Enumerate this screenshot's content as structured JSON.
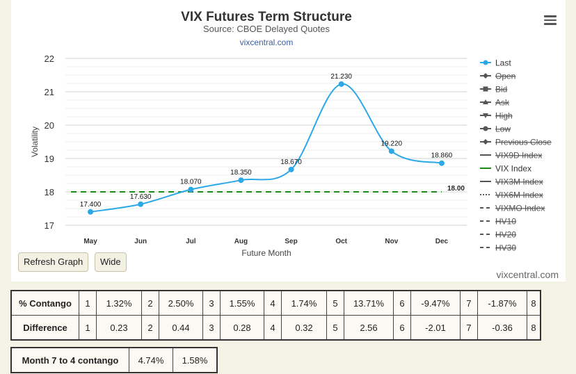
{
  "chart_data": {
    "type": "line",
    "title": "VIX Futures Term Structure",
    "subtitle": "Source: CBOE Delayed Quotes",
    "link": "vixcentral.com",
    "xlabel": "Future Month",
    "ylabel": "Volatility",
    "categories": [
      "May",
      "Jun",
      "Jul",
      "Aug",
      "Sep",
      "Oct",
      "Nov",
      "Dec"
    ],
    "yticks": [
      17,
      18,
      19,
      20,
      21,
      22
    ],
    "ylim": [
      17,
      22
    ],
    "grid": true,
    "legend_position": "right",
    "series": [
      {
        "name": "Last",
        "values": [
          17.4,
          17.63,
          18.07,
          18.35,
          18.67,
          21.23,
          19.22,
          18.86
        ],
        "labels": [
          "17.400",
          "17.630",
          "18.070",
          "18.350",
          "18.670",
          "21.230",
          "19.220",
          "18.860"
        ],
        "color": "#2ba8e8"
      },
      {
        "name": "VIX Index",
        "value": 18.0,
        "label": "18.00",
        "color": "#1a8a1a"
      }
    ],
    "legend": [
      {
        "name": "Last",
        "marker": "circle",
        "active": true
      },
      {
        "name": "Open",
        "marker": "diamond",
        "active": false
      },
      {
        "name": "Bid",
        "marker": "square",
        "active": false
      },
      {
        "name": "Ask",
        "marker": "triangle",
        "active": false
      },
      {
        "name": "High",
        "marker": "triangle-down",
        "active": false
      },
      {
        "name": "Low",
        "marker": "circle",
        "active": false
      },
      {
        "name": "Previous Close",
        "marker": "diamond",
        "active": false
      },
      {
        "name": "VIX9D Index",
        "marker": "line",
        "active": false
      },
      {
        "name": "VIX Index",
        "marker": "line",
        "active": true
      },
      {
        "name": "VIX3M Index",
        "marker": "line",
        "active": false
      },
      {
        "name": "VIX6M Index",
        "marker": "dots",
        "active": false
      },
      {
        "name": "VIXMO Index",
        "marker": "dash",
        "active": false
      },
      {
        "name": "HV10",
        "marker": "dash",
        "active": false
      },
      {
        "name": "HV20",
        "marker": "dash",
        "active": false
      },
      {
        "name": "HV30",
        "marker": "dash",
        "active": false
      }
    ]
  },
  "buttons": {
    "refresh": "Refresh Graph",
    "wide": "Wide"
  },
  "credit": "vixcentral.com",
  "contango_table": {
    "rows": [
      {
        "label": "% Contango",
        "cells": [
          [
            "1",
            "1.32%"
          ],
          [
            "2",
            "2.50%"
          ],
          [
            "3",
            "1.55%"
          ],
          [
            "4",
            "1.74%"
          ],
          [
            "5",
            "13.71%"
          ],
          [
            "6",
            "-9.47%"
          ],
          [
            "7",
            "-1.87%"
          ],
          [
            "8",
            ""
          ]
        ]
      },
      {
        "label": "Difference",
        "cells": [
          [
            "1",
            "0.23"
          ],
          [
            "2",
            "0.44"
          ],
          [
            "3",
            "0.28"
          ],
          [
            "4",
            "0.32"
          ],
          [
            "5",
            "2.56"
          ],
          [
            "6",
            "-2.01"
          ],
          [
            "7",
            "-0.36"
          ],
          [
            "8",
            ""
          ]
        ]
      }
    ]
  },
  "month_table": {
    "label": "Month 7 to 4 contango",
    "values": [
      "4.74%",
      "1.58%"
    ]
  }
}
